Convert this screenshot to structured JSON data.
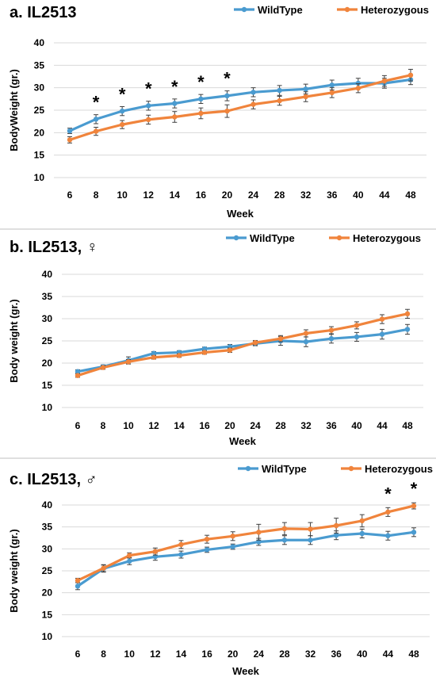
{
  "chart_data": [
    {
      "type": "line",
      "title": "a. IL2513",
      "xlabel": "Week",
      "ylabel": "BodyWeight (gr.)",
      "categories": [
        "6",
        "8",
        "10",
        "12",
        "14",
        "16",
        "20",
        "24",
        "28",
        "32",
        "36",
        "40",
        "44",
        "48"
      ],
      "ylim": [
        10,
        40
      ],
      "yticks": [
        10,
        15,
        20,
        25,
        30,
        35,
        40
      ],
      "grid": true,
      "legend_position": "top-right",
      "series": [
        {
          "name": "WildType",
          "color": "#4a9bd0",
          "values": [
            20.4,
            23.0,
            24.8,
            26.0,
            26.5,
            27.5,
            28.2,
            29.0,
            29.4,
            29.7,
            30.6,
            31.0,
            31.0,
            31.8
          ],
          "errors": [
            0.6,
            1.0,
            1.0,
            1.0,
            1.0,
            1.0,
            1.1,
            1.0,
            1.1,
            1.1,
            1.1,
            1.1,
            1.1,
            1.1
          ]
        },
        {
          "name": "Heterozygous",
          "color": "#f0843c",
          "values": [
            18.4,
            20.3,
            21.8,
            22.9,
            23.5,
            24.3,
            24.8,
            26.3,
            27.1,
            28.0,
            28.9,
            29.9,
            31.5,
            32.8
          ],
          "errors": [
            0.7,
            0.9,
            0.9,
            1.0,
            1.2,
            1.2,
            1.4,
            1.0,
            1.0,
            1.1,
            1.1,
            1.0,
            1.2,
            1.3
          ]
        }
      ],
      "annotations": [
        {
          "text": "*",
          "category": "8"
        },
        {
          "text": "*",
          "category": "10"
        },
        {
          "text": "*",
          "category": "12"
        },
        {
          "text": "*",
          "category": "14"
        },
        {
          "text": "*",
          "category": "16"
        },
        {
          "text": "*",
          "category": "20"
        }
      ]
    },
    {
      "type": "line",
      "title": "b. IL2513, ♀",
      "xlabel": "Week",
      "ylabel": "Body weight (gr.)",
      "categories": [
        "6",
        "8",
        "10",
        "12",
        "14",
        "16",
        "20",
        "24",
        "28",
        "32",
        "36",
        "40",
        "44",
        "48"
      ],
      "ylim": [
        10,
        40
      ],
      "yticks": [
        10,
        15,
        20,
        25,
        30,
        35,
        40
      ],
      "grid": true,
      "legend_position": "top-right",
      "series": [
        {
          "name": "WildType",
          "color": "#4a9bd0",
          "values": [
            18.1,
            19.2,
            20.6,
            22.2,
            22.4,
            23.2,
            23.7,
            24.4,
            25.0,
            24.8,
            25.5,
            25.9,
            26.5,
            27.6
          ],
          "errors": [
            0.4,
            0.4,
            0.8,
            0.4,
            0.4,
            0.4,
            0.5,
            0.5,
            1.0,
            1.1,
            1.0,
            1.0,
            1.1,
            1.1
          ]
        },
        {
          "name": "Heterozygous",
          "color": "#f0843c",
          "values": [
            17.2,
            19.0,
            20.3,
            21.3,
            21.7,
            22.4,
            22.9,
            24.6,
            25.5,
            26.7,
            27.4,
            28.5,
            29.9,
            31.1
          ],
          "errors": [
            0.4,
            0.4,
            0.5,
            0.4,
            0.4,
            0.4,
            0.5,
            0.5,
            0.7,
            0.8,
            0.8,
            0.8,
            1.0,
            1.0
          ]
        }
      ]
    },
    {
      "type": "line",
      "title": "c. IL2513, ♂",
      "xlabel": "Week",
      "ylabel": "Body weight (gr.)",
      "categories": [
        "6",
        "8",
        "10",
        "12",
        "14",
        "16",
        "20",
        "24",
        "28",
        "32",
        "36",
        "40",
        "44",
        "48"
      ],
      "ylim": [
        10,
        40
      ],
      "yticks": [
        10,
        15,
        20,
        25,
        30,
        35,
        40
      ],
      "grid": true,
      "legend_position": "top-right",
      "series": [
        {
          "name": "WildType",
          "color": "#4a9bd0",
          "values": [
            21.5,
            25.5,
            27.2,
            28.2,
            28.7,
            29.8,
            30.5,
            31.6,
            32.0,
            32.0,
            33.1,
            33.5,
            33.0,
            33.8
          ],
          "errors": [
            0.8,
            0.8,
            0.8,
            0.8,
            0.8,
            0.6,
            0.6,
            0.8,
            1.0,
            1.0,
            1.0,
            1.0,
            1.0,
            1.0
          ]
        },
        {
          "name": "Heterozygous",
          "color": "#f0843c",
          "values": [
            22.8,
            25.6,
            28.5,
            29.4,
            31.0,
            32.2,
            32.9,
            33.8,
            34.6,
            34.5,
            35.3,
            36.4,
            38.4,
            39.8
          ],
          "errors": [
            0.5,
            0.8,
            0.6,
            0.8,
            0.9,
            0.9,
            1.0,
            1.8,
            1.4,
            1.5,
            1.7,
            1.4,
            1.0,
            0.7
          ]
        }
      ],
      "annotations": [
        {
          "text": "*",
          "category": "44"
        },
        {
          "text": "*",
          "category": "48"
        }
      ]
    }
  ]
}
